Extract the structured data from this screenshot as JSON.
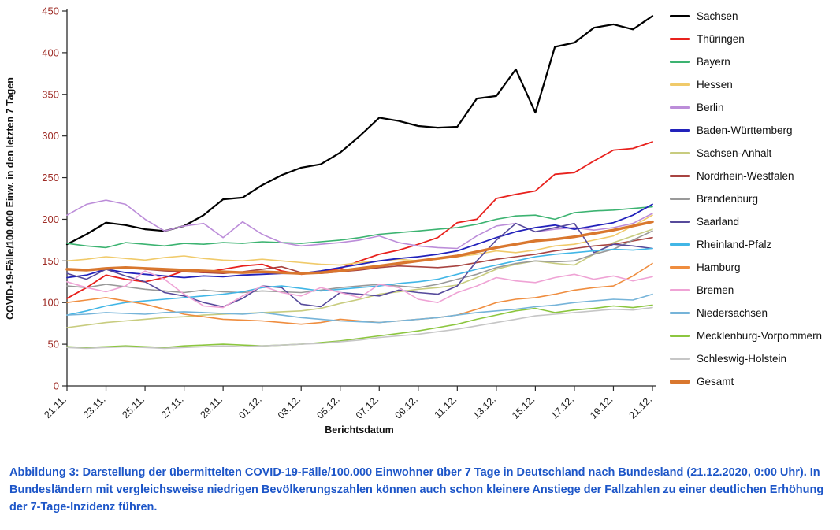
{
  "page": {
    "background": "#ffffff"
  },
  "caption": {
    "text": "Abbildung 3: Darstellung der übermittelten COVID-19-Fälle/100.000 Einwohner über 7 Tage in Deutschland nach Bundesland (21.12.2020, 0:00 Uhr). In Bundesländern mit vergleichsweise niedrigen Bevölkerungszahlen können auch schon kleinere Anstiege der Fallzahlen zu einer deutlichen Erhöhung der 7-Tage-Inzidenz führen.",
    "color": "#1d56c8"
  },
  "chart_data": {
    "type": "line",
    "title": "",
    "xlabel": "Berichtsdatum",
    "ylabel": "COVID-19-Fälle/100.000 Einw. in den letzten 7 Tagen",
    "ylim": [
      0,
      450
    ],
    "y_ticks": [
      0,
      50,
      100,
      150,
      200,
      250,
      300,
      350,
      400,
      450
    ],
    "grid": false,
    "legend_position": "right",
    "y_tick_color": "#9e2b25",
    "x_tick_color": "#1a1a1a",
    "axis_color": "#2b2b2b",
    "x_tick_step": 2,
    "x": [
      "21.11.",
      "22.11.",
      "23.11.",
      "24.11.",
      "25.11.",
      "26.11.",
      "27.11.",
      "28.11.",
      "29.11.",
      "30.11.",
      "01.12.",
      "02.12.",
      "03.12.",
      "04.12.",
      "05.12.",
      "06.12.",
      "07.12.",
      "08.12.",
      "09.12.",
      "10.12.",
      "11.12.",
      "12.12.",
      "13.12.",
      "14.12.",
      "15.12.",
      "16.12.",
      "17.12.",
      "18.12.",
      "19.12.",
      "20.12.",
      "21.12."
    ],
    "series": [
      {
        "name": "Sachsen",
        "color": "#000000",
        "width": 2.2,
        "values": [
          170,
          182,
          196,
          193,
          188,
          186,
          192,
          205,
          224,
          226,
          241,
          253,
          262,
          266,
          280,
          300,
          322,
          318,
          312,
          310,
          311,
          345,
          348,
          380,
          328,
          407,
          412,
          430,
          434,
          428,
          444
        ]
      },
      {
        "name": "Thüringen",
        "color": "#e8211d",
        "width": 1.8,
        "values": [
          105,
          118,
          133,
          128,
          125,
          130,
          138,
          136,
          140,
          144,
          146,
          138,
          134,
          137,
          141,
          150,
          158,
          163,
          170,
          178,
          196,
          200,
          225,
          230,
          234,
          254,
          256,
          270,
          283,
          285,
          293
        ]
      },
      {
        "name": "Bayern",
        "color": "#3cb371",
        "width": 1.6,
        "values": [
          171,
          168,
          166,
          172,
          170,
          168,
          171,
          170,
          172,
          171,
          173,
          172,
          171,
          173,
          175,
          178,
          182,
          184,
          186,
          188,
          190,
          194,
          200,
          204,
          205,
          200,
          208,
          210,
          211,
          213,
          215
        ]
      },
      {
        "name": "Hessen",
        "color": "#f0ca6a",
        "width": 1.6,
        "values": [
          150,
          152,
          155,
          153,
          151,
          154,
          156,
          153,
          151,
          150,
          152,
          150,
          148,
          146,
          145,
          148,
          150,
          152,
          150,
          152,
          155,
          158,
          162,
          160,
          163,
          168,
          170,
          175,
          180,
          192,
          205
        ]
      },
      {
        "name": "Berlin",
        "color": "#bc8dd9",
        "width": 1.6,
        "values": [
          205,
          218,
          223,
          218,
          200,
          186,
          192,
          195,
          178,
          197,
          182,
          172,
          168,
          170,
          172,
          175,
          180,
          172,
          168,
          166,
          165,
          180,
          192,
          195,
          185,
          188,
          190,
          187,
          190,
          195,
          207
        ]
      },
      {
        "name": "Baden-Württemberg",
        "color": "#2222bb",
        "width": 1.8,
        "values": [
          130,
          133,
          140,
          136,
          134,
          132,
          130,
          132,
          131,
          133,
          134,
          135,
          135,
          138,
          142,
          146,
          150,
          153,
          155,
          158,
          162,
          170,
          178,
          185,
          190,
          193,
          188,
          192,
          196,
          205,
          218
        ]
      },
      {
        "name": "Sachsen-Anhalt",
        "color": "#c8cc7f",
        "width": 1.6,
        "values": [
          70,
          73,
          76,
          78,
          80,
          82,
          83,
          85,
          86,
          87,
          88,
          89,
          90,
          93,
          99,
          104,
          110,
          113,
          116,
          118,
          121,
          130,
          140,
          146,
          150,
          147,
          145,
          158,
          172,
          180,
          188
        ]
      },
      {
        "name": "Nordrhein-Westfalen",
        "color": "#a84441",
        "width": 1.6,
        "values": [
          140,
          139,
          141,
          142,
          140,
          138,
          137,
          136,
          135,
          137,
          140,
          143,
          136,
          135,
          137,
          139,
          142,
          144,
          143,
          142,
          144,
          148,
          152,
          155,
          158,
          162,
          165,
          168,
          170,
          174,
          178
        ]
      },
      {
        "name": "Brandenburg",
        "color": "#999999",
        "width": 1.6,
        "values": [
          120,
          118,
          122,
          119,
          116,
          114,
          112,
          115,
          113,
          112,
          114,
          113,
          112,
          115,
          118,
          120,
          122,
          120,
          118,
          122,
          128,
          134,
          142,
          147,
          150,
          149,
          150,
          158,
          164,
          175,
          186
        ]
      },
      {
        "name": "Saarland",
        "color": "#564a9b",
        "width": 1.6,
        "values": [
          135,
          128,
          140,
          132,
          125,
          112,
          108,
          100,
          95,
          105,
          120,
          118,
          98,
          95,
          112,
          110,
          108,
          115,
          112,
          110,
          120,
          150,
          175,
          195,
          185,
          190,
          195,
          160,
          170,
          168,
          165
        ]
      },
      {
        "name": "Rheinland-Pfalz",
        "color": "#41b6e6",
        "width": 1.6,
        "values": [
          85,
          90,
          96,
          100,
          102,
          104,
          106,
          108,
          110,
          113,
          118,
          120,
          117,
          114,
          116,
          118,
          120,
          123,
          125,
          128,
          134,
          140,
          145,
          150,
          155,
          158,
          160,
          162,
          164,
          163,
          165
        ]
      },
      {
        "name": "Hamburg",
        "color": "#ef8d3f",
        "width": 1.6,
        "values": [
          100,
          103,
          106,
          102,
          98,
          92,
          86,
          83,
          80,
          79,
          78,
          76,
          74,
          76,
          80,
          78,
          76,
          78,
          80,
          82,
          85,
          92,
          100,
          104,
          106,
          110,
          115,
          118,
          120,
          132,
          147
        ]
      },
      {
        "name": "Bremen",
        "color": "#efa3d5",
        "width": 1.6,
        "values": [
          125,
          118,
          113,
          120,
          138,
          128,
          110,
          96,
          94,
          108,
          120,
          112,
          108,
          118,
          112,
          106,
          122,
          118,
          104,
          100,
          112,
          120,
          130,
          126,
          124,
          130,
          134,
          128,
          132,
          126,
          131
        ]
      },
      {
        "name": "Niedersachsen",
        "color": "#76b4d9",
        "width": 1.6,
        "values": [
          85,
          86,
          88,
          87,
          86,
          88,
          89,
          88,
          87,
          86,
          88,
          85,
          82,
          80,
          78,
          77,
          76,
          78,
          80,
          82,
          85,
          88,
          90,
          92,
          95,
          97,
          100,
          102,
          104,
          103,
          110
        ]
      },
      {
        "name": "Mecklenburg-Vorpommern",
        "color": "#8cc63f",
        "width": 1.6,
        "values": [
          47,
          46,
          47,
          48,
          47,
          46,
          48,
          49,
          50,
          49,
          48,
          49,
          50,
          52,
          54,
          57,
          60,
          63,
          66,
          70,
          74,
          80,
          85,
          90,
          93,
          88,
          91,
          93,
          96,
          94,
          97
        ]
      },
      {
        "name": "Schleswig-Holstein",
        "color": "#c6c6c6",
        "width": 1.6,
        "values": [
          46,
          45,
          46,
          47,
          46,
          45,
          46,
          47,
          48,
          47,
          48,
          49,
          50,
          51,
          53,
          55,
          58,
          60,
          62,
          65,
          68,
          72,
          76,
          80,
          84,
          86,
          88,
          90,
          92,
          91,
          94
        ]
      },
      {
        "name": "Gesamt",
        "color": "#d9772e",
        "width": 3.5,
        "values": [
          140,
          139,
          141,
          142,
          141,
          140,
          139,
          138,
          137,
          136,
          137,
          136,
          135,
          136,
          138,
          141,
          144,
          147,
          150,
          153,
          156,
          161,
          166,
          170,
          174,
          176,
          179,
          183,
          187,
          192,
          197
        ]
      }
    ]
  }
}
